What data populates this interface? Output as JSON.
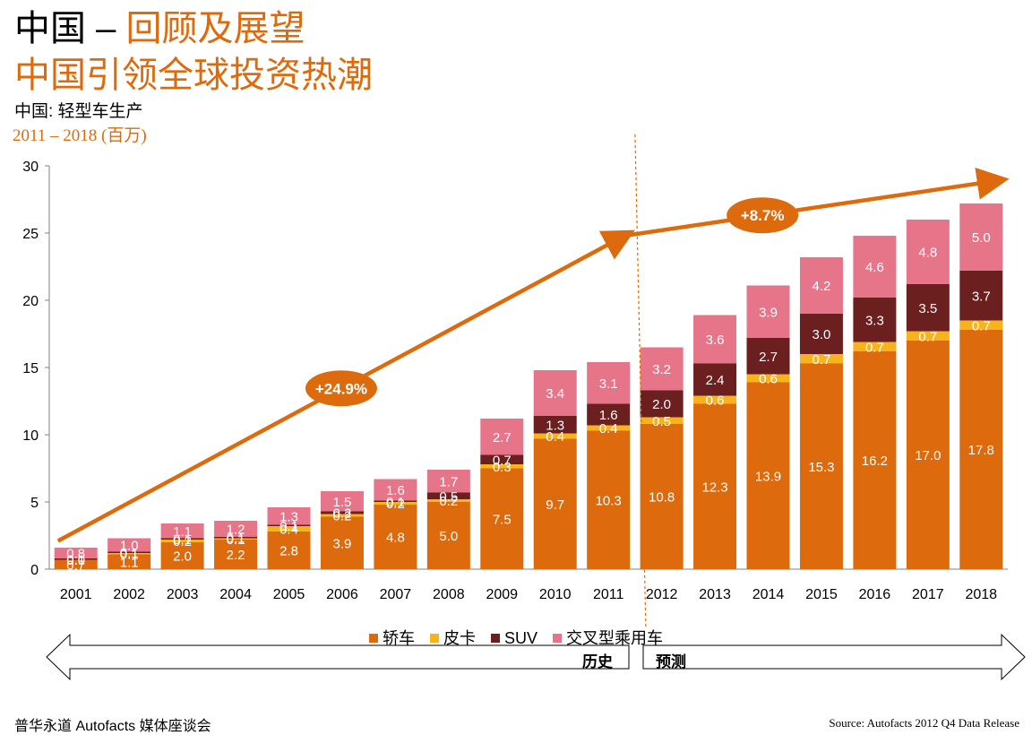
{
  "header": {
    "title_prefix": "中国 – ",
    "title_highlight": "回顾及展望",
    "subtitle": "中国引领全球投资热潮",
    "chart_caption": "中国: 轻型车生产",
    "chart_range": "2011 – 2018 (百万)"
  },
  "period_labels": {
    "history": "历史",
    "forecast": "预测"
  },
  "footer": {
    "event": "普华永道 Autofacts 媒体座谈会",
    "source": "Source: Autofacts 2012 Q4 Data Release"
  },
  "colors": {
    "accent": "#dd6a0c",
    "sedan": "#dd6a0c",
    "pickup": "#f7b31d",
    "suv": "#6b1f1f",
    "crossover": "#e6758a"
  },
  "chart_data": {
    "type": "bar",
    "stacked": true,
    "categories": [
      "2001",
      "2002",
      "2003",
      "2004",
      "2005",
      "2006",
      "2007",
      "2008",
      "2009",
      "2010",
      "2011",
      "2012",
      "2013",
      "2014",
      "2015",
      "2016",
      "2017",
      "2018"
    ],
    "series": [
      {
        "name": "轿车",
        "values": [
          0.7,
          1.1,
          2.0,
          2.2,
          2.8,
          3.9,
          4.8,
          5.0,
          7.5,
          9.7,
          10.3,
          10.8,
          12.3,
          13.9,
          15.3,
          16.2,
          17.0,
          17.8
        ]
      },
      {
        "name": "皮卡",
        "values": [
          0.0,
          0.1,
          0.2,
          0.1,
          0.4,
          0.2,
          0.2,
          0.2,
          0.3,
          0.4,
          0.4,
          0.5,
          0.6,
          0.6,
          0.7,
          0.7,
          0.7,
          0.7
        ]
      },
      {
        "name": "SUV",
        "values": [
          0.1,
          0.1,
          0.1,
          0.1,
          0.1,
          0.2,
          0.1,
          0.5,
          0.7,
          1.3,
          1.6,
          2.0,
          2.4,
          2.7,
          3.0,
          3.3,
          3.5,
          3.7
        ]
      },
      {
        "name": "交叉型乘用车",
        "values": [
          0.8,
          1.0,
          1.1,
          1.2,
          1.3,
          1.5,
          1.6,
          1.7,
          2.7,
          3.4,
          3.1,
          3.2,
          3.6,
          3.9,
          4.2,
          4.6,
          4.8,
          5.0
        ]
      }
    ],
    "ylim": [
      0,
      30
    ],
    "yticks": [
      0,
      5,
      10,
      15,
      20,
      25,
      30
    ],
    "xlabel": "",
    "ylabel": "",
    "legend_position": "bottom",
    "grid": false,
    "annotations": [
      {
        "label": "+24.9%",
        "from": "2001",
        "to": "2011"
      },
      {
        "label": "+8.7%",
        "from": "2011",
        "to": "2018"
      }
    ]
  }
}
